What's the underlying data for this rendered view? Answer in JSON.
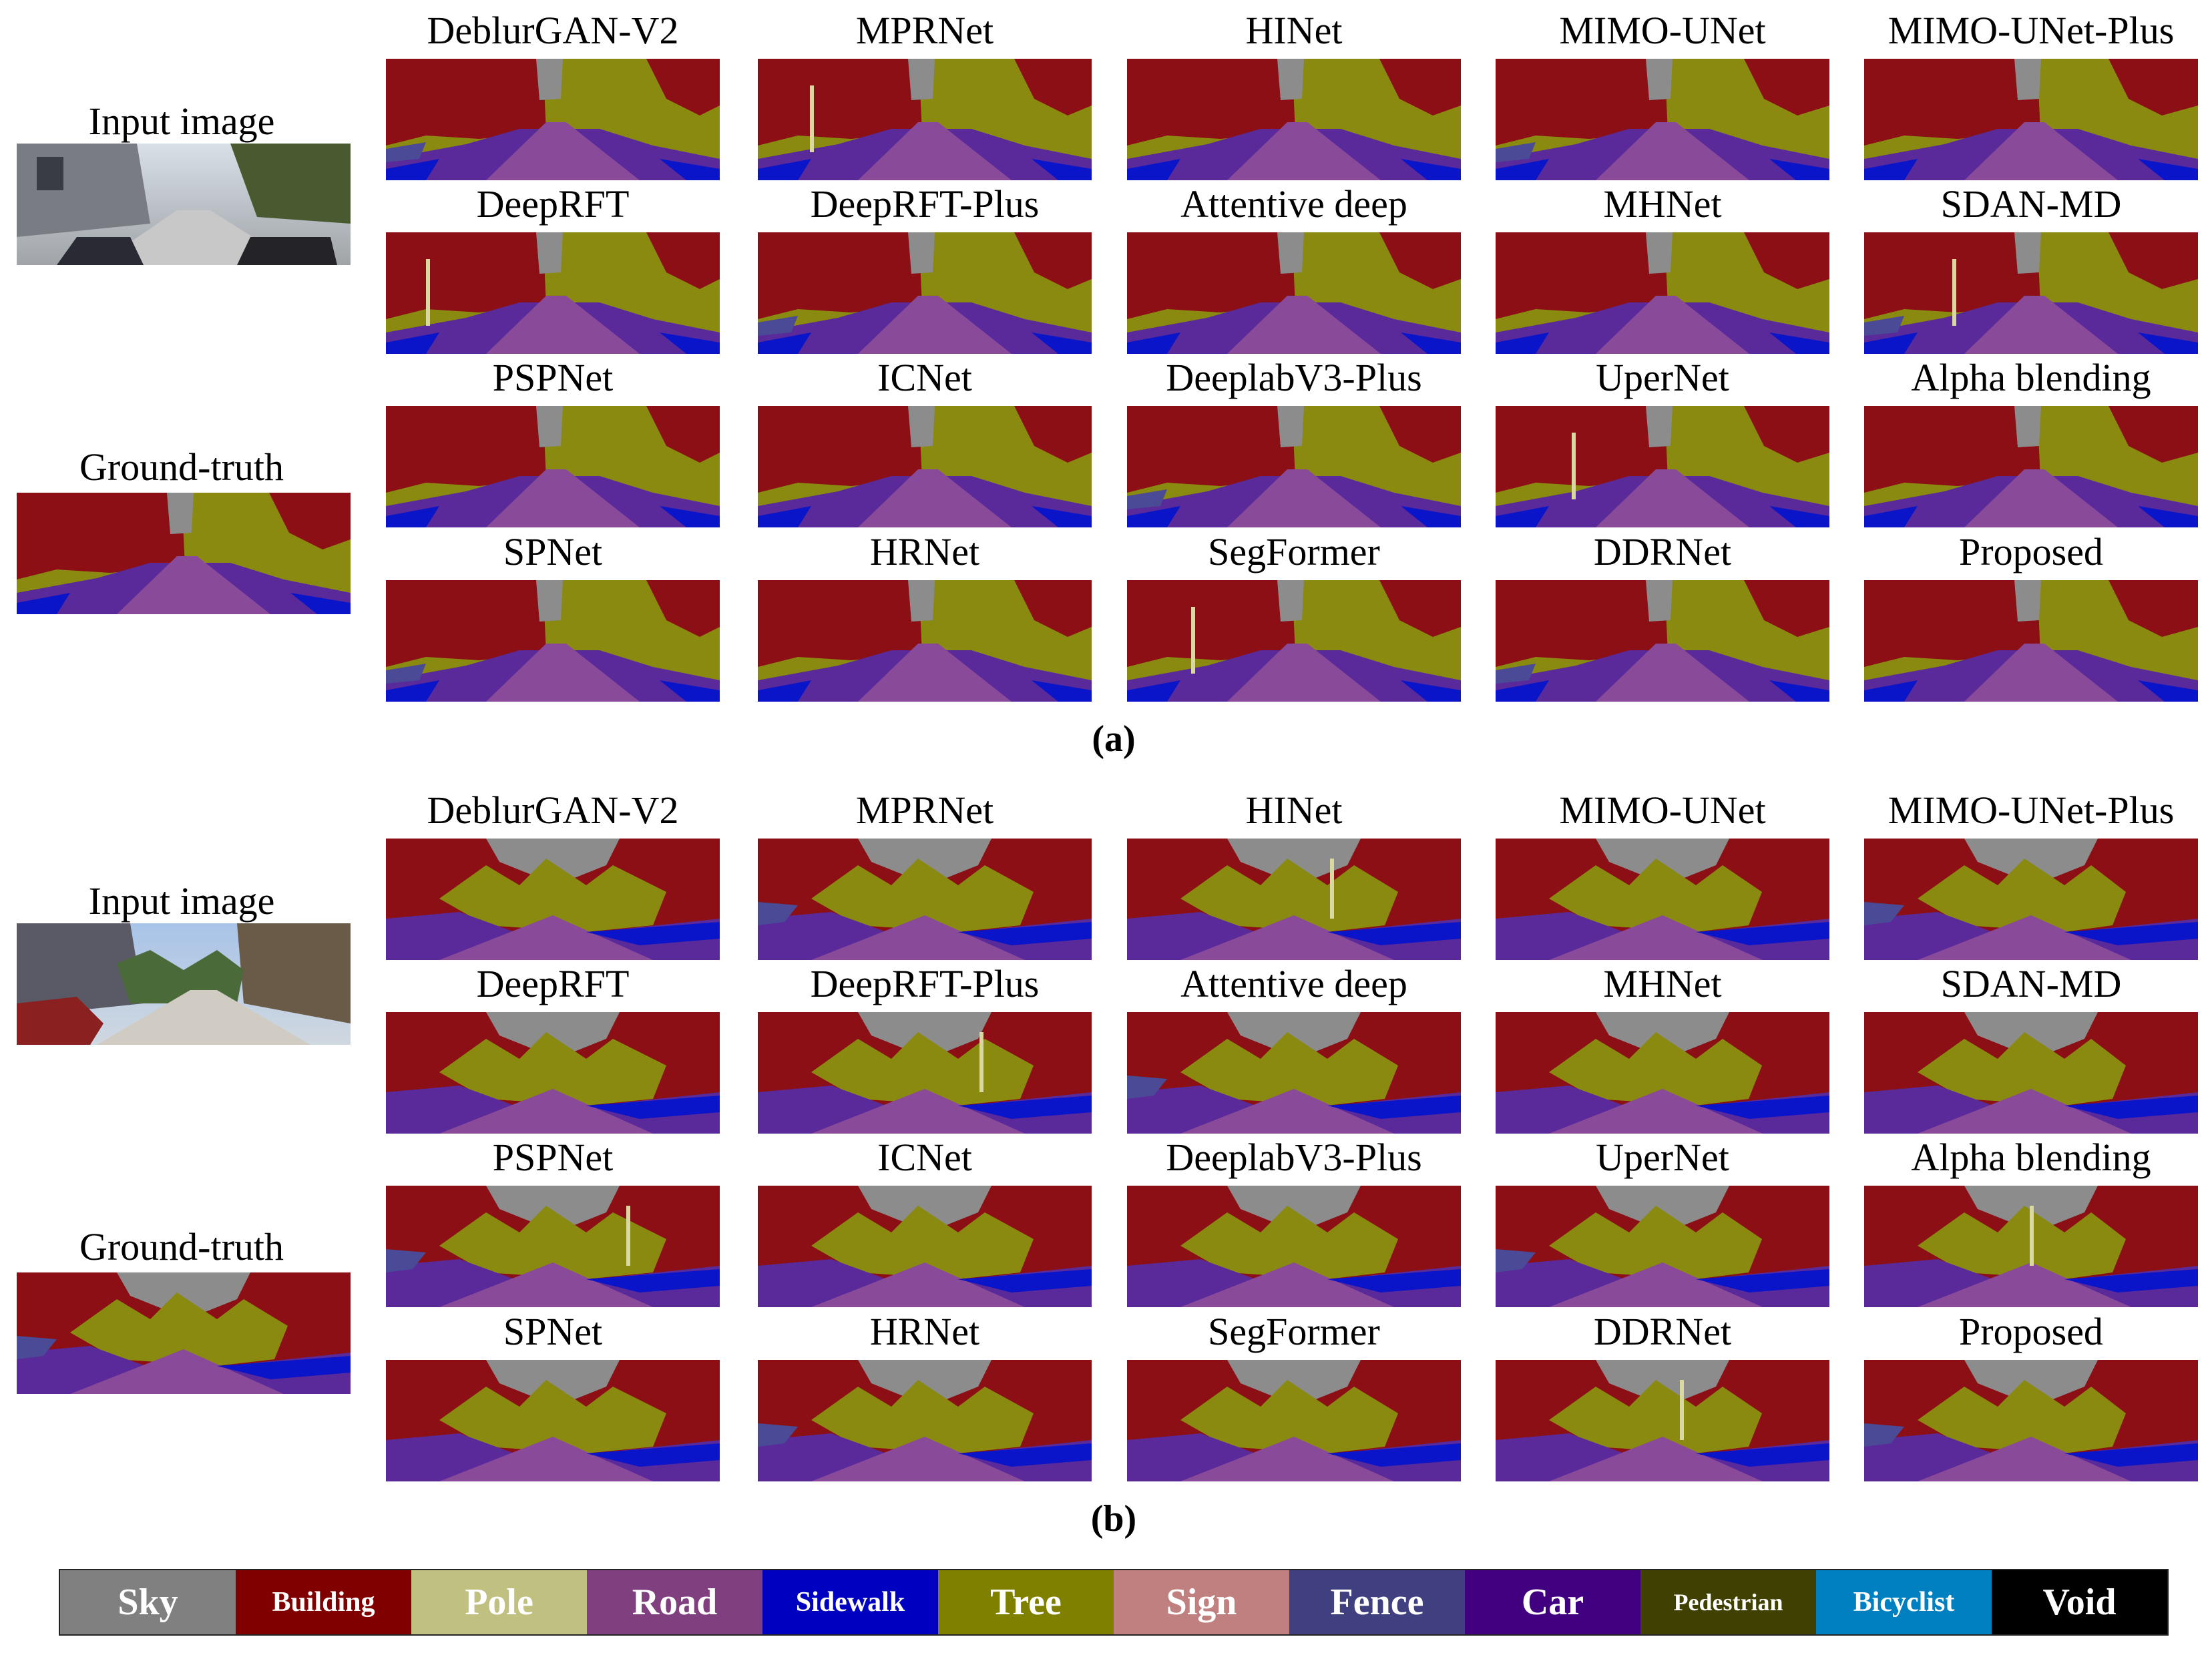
{
  "panels": [
    {
      "caption": "(a)",
      "input_label": "Input image",
      "gt_label": "Ground-truth",
      "methods": [
        "DeblurGAN-V2",
        "MPRNet",
        "HINet",
        "MIMO-UNet",
        "MIMO-UNet-Plus",
        "DeepRFT",
        "DeepRFT-Plus",
        "Attentive deep",
        "MHNet",
        "SDAN-MD",
        "PSPNet",
        "ICNet",
        "DeeplabV3-Plus",
        "UperNet",
        "Alpha blending",
        "SPNet",
        "HRNet",
        "SegFormer",
        "DDRNet",
        "Proposed"
      ]
    },
    {
      "caption": "(b)",
      "input_label": "Input image",
      "gt_label": "Ground-truth",
      "methods": [
        "DeblurGAN-V2",
        "MPRNet",
        "HINet",
        "MIMO-UNet",
        "MIMO-UNet-Plus",
        "DeepRFT",
        "DeepRFT-Plus",
        "Attentive deep",
        "MHNet",
        "SDAN-MD",
        "PSPNet",
        "ICNet",
        "DeeplabV3-Plus",
        "UperNet",
        "Alpha blending",
        "SPNet",
        "HRNet",
        "SegFormer",
        "DDRNet",
        "Proposed"
      ]
    }
  ],
  "legend": [
    {
      "label": "Sky",
      "color": "#808080",
      "text_color": "#ffffff"
    },
    {
      "label": "Building",
      "color": "#800000",
      "text_color": "#ffffff"
    },
    {
      "label": "Pole",
      "color": "#c0c080",
      "text_color": "#ffffff"
    },
    {
      "label": "Road",
      "color": "#804080",
      "text_color": "#ffffff"
    },
    {
      "label": "Sidewalk",
      "color": "#0000c0",
      "text_color": "#ffffff"
    },
    {
      "label": "Tree",
      "color": "#808000",
      "text_color": "#ffffff"
    },
    {
      "label": "Sign",
      "color": "#c08080",
      "text_color": "#ffffff"
    },
    {
      "label": "Fence",
      "color": "#404080",
      "text_color": "#ffffff"
    },
    {
      "label": "Car",
      "color": "#400080",
      "text_color": "#ffffff"
    },
    {
      "label": "Pedestrian",
      "color": "#404000",
      "text_color": "#ffffff"
    },
    {
      "label": "Bicyclist",
      "color": "#0080c0",
      "text_color": "#ffffff"
    },
    {
      "label": "Void",
      "color": "#000000",
      "text_color": "#ffffff"
    }
  ]
}
